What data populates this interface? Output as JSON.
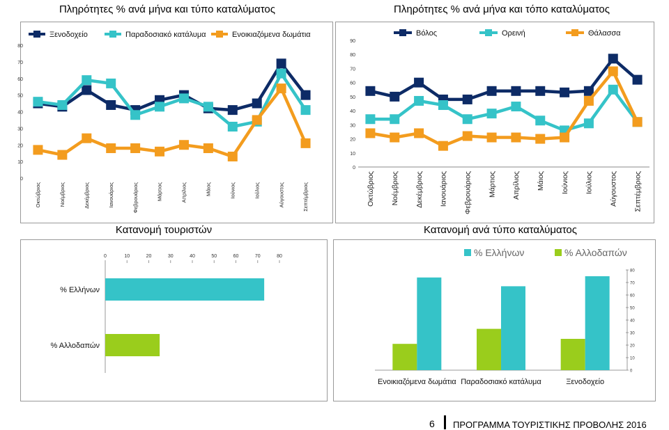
{
  "chart_data": [
    {
      "id": "lodging",
      "type": "line",
      "title": "Πληρότητες % ανά μήνα και τύπο καταλύματος",
      "categories": [
        "Οκτώβριος",
        "Νοέμβριος",
        "Δεκέμβριος",
        "Ιανουάριος",
        "Φεβρουάριος",
        "Μάρτιος",
        "Απρίλιος",
        "Μάιος",
        "Ιούνιος",
        "Ιούλιος",
        "Αύγουστος",
        "Σεπτέμβριος"
      ],
      "ylim": [
        0,
        80
      ],
      "yticks": [
        0,
        10,
        20,
        30,
        40,
        50,
        60,
        70,
        80
      ],
      "series": [
        {
          "name": "Ξενοδοχείο",
          "color": "#0d2b66",
          "values": [
            45,
            43,
            53,
            44,
            41,
            47,
            50,
            42,
            41,
            45,
            69,
            50
          ]
        },
        {
          "name": "Παραδοσιακό κατάλυμα",
          "color": "#35c3c8",
          "values": [
            46,
            44,
            59,
            57,
            38,
            43,
            48,
            43,
            31,
            34,
            63,
            41
          ]
        },
        {
          "name": "Ενοικιαζόμενα δωμάτια",
          "color": "#f39c1e",
          "values": [
            17,
            14,
            24,
            18,
            18,
            16,
            20,
            18,
            13,
            35,
            54,
            21
          ]
        }
      ]
    },
    {
      "id": "place",
      "type": "line",
      "title": "Πληρότητες % ανά μήνα και τόπο καταλύματος",
      "categories": [
        "Οκτώβριος",
        "Νοέμβριος",
        "Δεκέμβριος",
        "Ιανουάριος",
        "Φεβρουάριος",
        "Μάρτιος",
        "Απρίλιος",
        "Μάιος",
        "Ιούνιος",
        "Ιούλιος",
        "Αύγουστος",
        "Σεπτέμβριος"
      ],
      "ylim": [
        0,
        90
      ],
      "yticks": [
        0,
        10,
        20,
        30,
        40,
        50,
        60,
        70,
        80,
        90
      ],
      "series": [
        {
          "name": "Βόλος",
          "color": "#0d2b66",
          "values": [
            54,
            50,
            60,
            48,
            48,
            54,
            54,
            54,
            53,
            54,
            77,
            62
          ]
        },
        {
          "name": "Ορεινή",
          "color": "#35c3c8",
          "values": [
            34,
            34,
            47,
            44,
            34,
            38,
            43,
            33,
            26,
            31,
            55,
            32
          ]
        },
        {
          "name": "Θάλασσα",
          "color": "#f39c1e",
          "values": [
            24,
            21,
            24,
            15,
            22,
            21,
            21,
            20,
            21,
            47,
            68,
            32
          ]
        }
      ]
    },
    {
      "id": "tourists",
      "type": "bar",
      "orientation": "horizontal",
      "title": "Κατανομή τουριστών",
      "categories": [
        "% Ελλήνων",
        "% Αλλοδαπών"
      ],
      "values": [
        73,
        25
      ],
      "colors": [
        "#35c3c8",
        "#9acd1c"
      ],
      "xlim": [
        0,
        80
      ],
      "xticks": [
        0,
        10,
        20,
        30,
        40,
        50,
        60,
        70,
        80
      ]
    },
    {
      "id": "bytype",
      "type": "bar",
      "title": "Κατανομή ανά τύπο καταλύματος",
      "categories": [
        "Ενοικιαζόμενα δωμάτια",
        "Παραδοσιακό κατάλυμα",
        "Ξενοδοχείο"
      ],
      "series": [
        {
          "name": "% Ελλήνων",
          "color": "#35c3c8",
          "values": [
            74,
            67,
            75
          ]
        },
        {
          "name": "% Αλλοδαπών",
          "color": "#9acd1c",
          "values": [
            21,
            33,
            25
          ]
        }
      ],
      "ylim": [
        0,
        80
      ],
      "yticks": [
        0,
        10,
        20,
        30,
        40,
        50,
        60,
        70,
        80
      ]
    }
  ],
  "footer": {
    "page": "6",
    "text": "ΠΡΟΓΡΑΜΜΑ ΤΟΥΡΙΣΤΙΚΗΣ ΠΡΟΒΟΛΗΣ 2016"
  }
}
